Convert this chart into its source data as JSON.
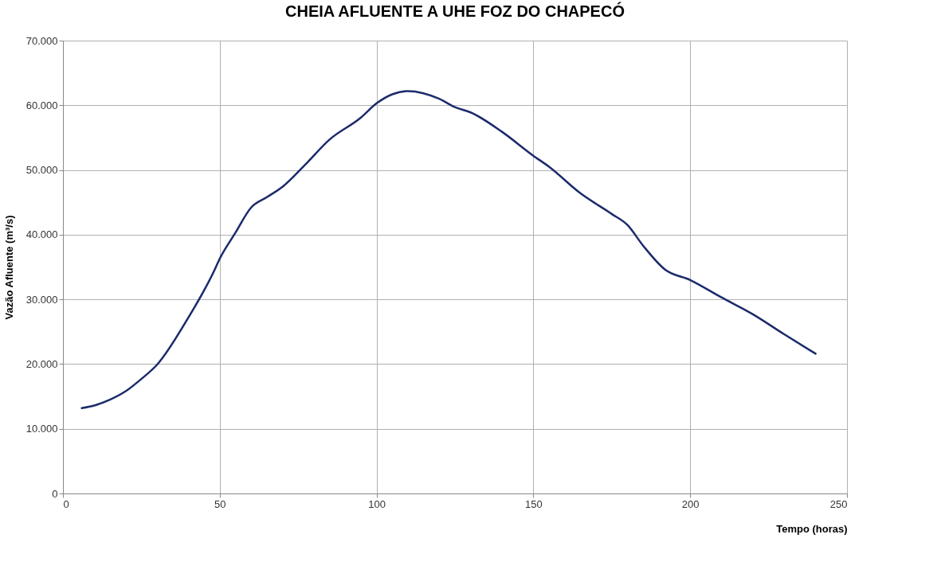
{
  "chart_data": {
    "type": "line",
    "title": "CHEIA AFLUENTE A UHE FOZ DO CHAPECÓ",
    "xlabel": "Tempo (horas)",
    "ylabel": "Vazão Afluente (m³/s)",
    "x": [
      6,
      10,
      15,
      20,
      25,
      30,
      40,
      48,
      50,
      55,
      60,
      65,
      70,
      77,
      85,
      95,
      100,
      105,
      110,
      120,
      125,
      130,
      140,
      150,
      155,
      165,
      175,
      180,
      185,
      192,
      200,
      210,
      220,
      230,
      240
    ],
    "series": [
      {
        "color": "#1b2a6b",
        "values": [
          13200,
          13600,
          14500,
          15800,
          17700,
          19900,
          27200,
          34200,
          36300,
          40300,
          44200,
          45800,
          47400,
          50700,
          54700,
          58100,
          60300,
          61700,
          62200,
          61000,
          59700,
          58900,
          55900,
          52200,
          50500,
          46400,
          43200,
          41500,
          38300,
          34600,
          33000,
          30300,
          27700,
          24600,
          21600
        ]
      }
    ],
    "xlim": [
      0,
      250
    ],
    "xticks": [
      0,
      50,
      100,
      150,
      200,
      250
    ],
    "ylim": [
      0,
      70000
    ],
    "yticks": [
      0,
      {
        "value": 10000,
        "label": "10.000"
      },
      {
        "value": 20000,
        "label": "20.000"
      },
      {
        "value": 30000,
        "label": "30.000"
      },
      {
        "value": 40000,
        "label": "40.000"
      },
      {
        "value": 50000,
        "label": "50.000"
      },
      {
        "value": 60000,
        "label": "60.000"
      },
      {
        "value": 70000,
        "label": "70.000"
      }
    ],
    "grid": true,
    "line_style": "solid",
    "marker": "none"
  }
}
